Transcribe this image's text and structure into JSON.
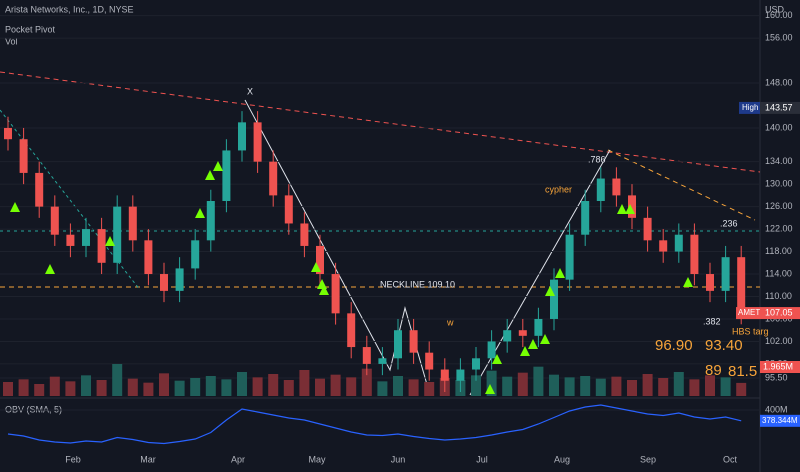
{
  "chart_data": {
    "type": "candlestick",
    "title": "Arista Networks, Inc., 1D, NYSE",
    "indicators": [
      "Pocket Pivot",
      "Vol"
    ],
    "currency": "USD",
    "months": [
      "Feb",
      "Mar",
      "Apr",
      "May",
      "Jun",
      "Jul",
      "Aug",
      "Sep",
      "Oct"
    ],
    "open": [
      140,
      138,
      132,
      126,
      121,
      119,
      122,
      116,
      126,
      120,
      114,
      111,
      115,
      120,
      127,
      136,
      141,
      134,
      128,
      123,
      119,
      114,
      107,
      101,
      98,
      99,
      104,
      100,
      97,
      95,
      97,
      99,
      102,
      104,
      103,
      106,
      113,
      121,
      127,
      131,
      128,
      124,
      120,
      118,
      121,
      114,
      111,
      117
    ],
    "high": [
      142,
      140,
      134,
      128,
      123,
      124,
      124,
      128,
      128,
      122,
      116,
      117,
      122,
      129,
      138,
      143,
      143,
      136,
      130,
      125,
      121,
      116,
      109,
      103,
      101,
      106,
      106,
      102,
      99,
      99,
      101,
      104,
      106,
      106,
      108,
      115,
      123,
      129,
      133,
      133,
      130,
      126,
      122,
      123,
      123,
      116,
      119,
      119
    ],
    "low": [
      136,
      130,
      124,
      119,
      117,
      117,
      114,
      114,
      118,
      112,
      109,
      109,
      113,
      118,
      125,
      134,
      132,
      126,
      121,
      117,
      112,
      105,
      99,
      96,
      96,
      97,
      98,
      95,
      93,
      93,
      95,
      97,
      100,
      101,
      101,
      104,
      111,
      119,
      125,
      126,
      122,
      118,
      116,
      116,
      112,
      109,
      109,
      105.05
    ],
    "close": [
      138,
      132,
      126,
      121,
      119,
      122,
      116,
      126,
      120,
      114,
      111,
      115,
      120,
      127,
      136,
      141,
      134,
      128,
      123,
      119,
      114,
      107,
      101,
      98,
      99,
      104,
      100,
      97,
      95,
      97,
      99,
      102,
      104,
      103,
      106,
      113,
      121,
      127,
      131,
      128,
      124,
      120,
      118,
      121,
      114,
      111,
      117,
      107.05
    ],
    "up_color": "#26a69a",
    "down_color": "#ef5350",
    "ylim": [
      93,
      161
    ],
    "yticks": [
      {
        "value": 95.5,
        "label": "95.50"
      },
      {
        "value": 98,
        "label": "98.00"
      },
      {
        "value": 102,
        "label": "102.00"
      },
      {
        "value": 106,
        "label": "106.00"
      },
      {
        "value": 110,
        "label": "110.00"
      },
      {
        "value": 114,
        "label": "114.00"
      },
      {
        "value": 118,
        "label": "118.00"
      },
      {
        "value": 122,
        "label": "122.00"
      },
      {
        "value": 126,
        "label": "126.00"
      },
      {
        "value": 130,
        "label": "130.00"
      },
      {
        "value": 134,
        "label": "134.00"
      },
      {
        "value": 140,
        "label": "140.00"
      },
      {
        "value": 148,
        "label": "148.00"
      },
      {
        "value": 156,
        "label": "156.00"
      },
      {
        "value": 160,
        "label": "160.00"
      }
    ],
    "high_label": "High",
    "high_value": 143.57,
    "symbol": "AMET",
    "volume": {
      "values": [
        2.1,
        2.5,
        1.8,
        2.9,
        2.2,
        3.1,
        2.4,
        4.8,
        2.6,
        2.0,
        3.4,
        2.3,
        2.7,
        3.0,
        2.5,
        3.6,
        2.8,
        3.3,
        2.4,
        3.9,
        2.6,
        3.2,
        2.8,
        4.1,
        2.2,
        3.0,
        2.5,
        2.1,
        2.7,
        2.4,
        3.1,
        3.8,
        2.9,
        3.5,
        4.4,
        3.2,
        2.8,
        3.0,
        2.6,
        2.9,
        2.4,
        3.3,
        2.7,
        3.6,
        2.5,
        3.1,
        2.8,
        1.965
      ],
      "last_label": "1.965M",
      "ylim": [
        0,
        9
      ]
    },
    "annotations": [
      "X",
      ".786",
      "cypher",
      ".236",
      "NECKLINE 109.10",
      ".382",
      "HBS targ",
      "96.90",
      "93.40",
      "89",
      "81.5",
      "w"
    ],
    "obv": {
      "title": "OBV (SMA, 5)",
      "color": "#2962ff",
      "values": [
        352,
        348,
        340,
        336,
        334,
        338,
        336,
        345,
        341,
        335,
        333,
        337,
        342,
        355,
        380,
        402,
        396,
        390,
        384,
        380,
        372,
        364,
        356,
        350,
        349,
        352,
        347,
        343,
        340,
        342,
        345,
        350,
        356,
        361,
        372,
        385,
        398,
        406,
        410,
        404,
        398,
        392,
        389,
        394,
        386,
        382,
        386,
        378.344
      ],
      "last_label": "378.344M",
      "ylim": [
        320,
        420
      ],
      "yticks": [
        {
          "value": 400,
          "label": "400M"
        }
      ]
    }
  }
}
